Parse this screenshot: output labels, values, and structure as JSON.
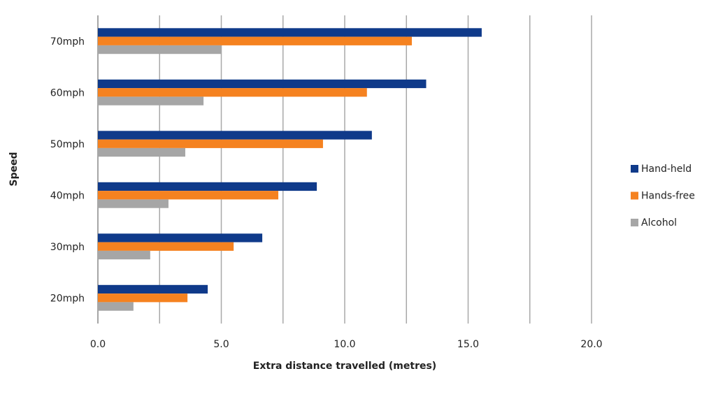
{
  "chart_data": {
    "type": "bar",
    "orientation": "horizontal",
    "title": "",
    "xlabel": "Extra distance travelled (metres)",
    "ylabel": "Speed",
    "categories": [
      "20mph",
      "30mph",
      "40mph",
      "50mph",
      "60mph",
      "70mph"
    ],
    "series": [
      {
        "name": "Hand-held",
        "color": "#0f3a8a",
        "values": [
          4.45,
          6.66,
          8.87,
          11.1,
          13.3,
          15.55
        ]
      },
      {
        "name": "Hands-free",
        "color": "#f58220",
        "values": [
          3.63,
          5.5,
          7.31,
          9.12,
          10.9,
          12.72
        ]
      },
      {
        "name": "Alcohol",
        "color": "#a6a6a6",
        "values": [
          1.44,
          2.12,
          2.86,
          3.54,
          4.28,
          4.99
        ]
      }
    ],
    "xlim": [
      0,
      20
    ],
    "xticks": [
      "0.0",
      "5.0",
      "10.0",
      "15.0",
      "20.0"
    ],
    "gridline_step": 2.5,
    "grid": true,
    "legend_placement": "right"
  }
}
